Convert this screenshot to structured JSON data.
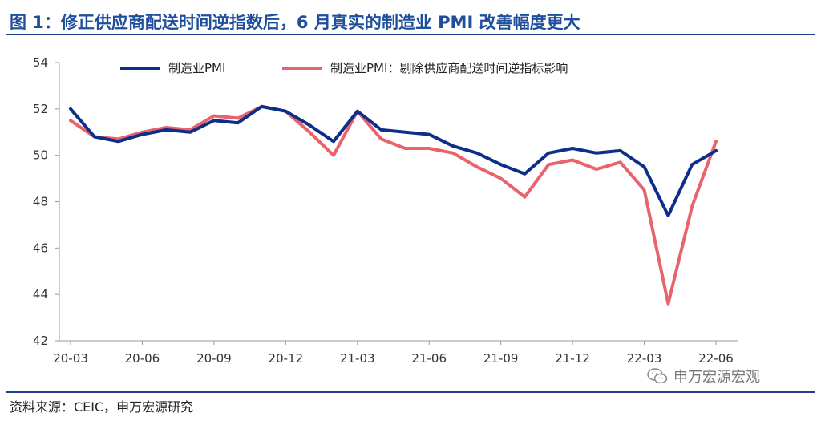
{
  "header": {
    "title": "图 1：修正供应商配送时间逆指数后，6 月真实的制造业 PMI 改善幅度更大"
  },
  "footer": {
    "source": "资料来源：CEIC，申万宏源研究",
    "watermark": "申万宏源宏观",
    "watermark_icon": "wechat-icon"
  },
  "colors": {
    "title": "#1f4e9c",
    "series_pmi": "#0d2f8a",
    "series_adj": "#e8636b",
    "rule": "#1f3f8c"
  },
  "chart_data": {
    "type": "line",
    "title": "",
    "xlabel": "",
    "ylabel": "",
    "ylim": [
      42,
      54
    ],
    "yticks": [
      "42",
      "44",
      "46",
      "48",
      "50",
      "52",
      "54"
    ],
    "grid": false,
    "legend_position": "top",
    "x": [
      "20-03",
      "20-04",
      "20-05",
      "20-06",
      "20-07",
      "20-08",
      "20-09",
      "20-10",
      "20-11",
      "20-12",
      "21-01",
      "21-02",
      "21-03",
      "21-04",
      "21-05",
      "21-06",
      "21-07",
      "21-08",
      "21-09",
      "21-10",
      "21-11",
      "21-12",
      "22-01",
      "22-02",
      "22-03",
      "22-04",
      "22-05",
      "22-06"
    ],
    "xticks": [
      "20-03",
      "20-06",
      "20-09",
      "20-12",
      "21-03",
      "21-06",
      "21-09",
      "21-12",
      "22-03",
      "22-06"
    ],
    "series": [
      {
        "name": "制造业PMI",
        "color": "#0d2f8a",
        "values": [
          52.0,
          50.8,
          50.6,
          50.9,
          51.1,
          51.0,
          51.5,
          51.4,
          52.1,
          51.9,
          51.3,
          50.6,
          51.9,
          51.1,
          51.0,
          50.9,
          50.4,
          50.1,
          49.6,
          49.2,
          50.1,
          50.3,
          50.1,
          50.2,
          49.5,
          47.4,
          49.6,
          50.2
        ]
      },
      {
        "name": "制造业PMI：剔除供应商配送时间逆指标影响",
        "color": "#e8636b",
        "values": [
          51.5,
          50.8,
          50.7,
          51.0,
          51.2,
          51.1,
          51.7,
          51.6,
          52.1,
          51.9,
          51.0,
          50.0,
          51.9,
          50.7,
          50.3,
          50.3,
          50.1,
          49.5,
          49.0,
          48.2,
          49.6,
          49.8,
          49.4,
          49.7,
          48.5,
          43.6,
          47.8,
          50.6
        ]
      }
    ]
  }
}
